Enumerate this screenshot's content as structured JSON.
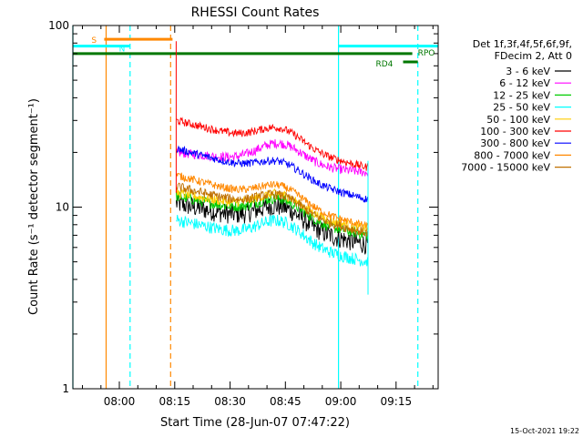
{
  "chart_data": {
    "type": "line",
    "title": "RHESSI Count Rates",
    "xlabel": "Start Time (28-Jun-07 07:47:22)",
    "ylabel": "Count Rate (s⁻¹ detector segment⁻¹)",
    "y_scale": "log",
    "ylim": [
      1,
      100
    ],
    "xlim_minutes_after_start": [
      0,
      99
    ],
    "x_ticks": [
      {
        "label": "08:00",
        "minutes": 12.6
      },
      {
        "label": "08:15",
        "minutes": 27.6
      },
      {
        "label": "08:30",
        "minutes": 42.6
      },
      {
        "label": "08:45",
        "minutes": 57.6
      },
      {
        "label": "09:00",
        "minutes": 72.6
      },
      {
        "label": "09:15",
        "minutes": 87.6
      }
    ],
    "y_ticks": [
      {
        "label": "1",
        "value": 1
      },
      {
        "label": "10",
        "value": 10
      },
      {
        "label": "100",
        "value": 100
      }
    ],
    "legend": {
      "header": [
        "Det 1f,3f,4f,5f,6f,9f,",
        "FDecim 2, Att 0"
      ],
      "placement": "right"
    },
    "series": [
      {
        "name": "3 - 6 keV",
        "color": "#000000",
        "start": 10.5,
        "end": 6.2,
        "bump": 2.2,
        "noise": 0.13
      },
      {
        "name": "6 - 12 keV",
        "color": "#ff00ff",
        "start": 20.0,
        "end": 15.5,
        "bump": 5.0,
        "noise": 0.06
      },
      {
        "name": "12 - 25 keV",
        "color": "#00cc00",
        "start": 11.5,
        "end": 7.0,
        "bump": 2.3,
        "noise": 0.07
      },
      {
        "name": "25 - 50 keV",
        "color": "#00ffff",
        "start": 8.5,
        "end": 5.0,
        "bump": 2.0,
        "noise": 0.08
      },
      {
        "name": "50 - 100 keV",
        "color": "#ffcc00",
        "start": 12.0,
        "end": 7.6,
        "bump": 2.4,
        "noise": 0.06
      },
      {
        "name": "100 - 300 keV",
        "color": "#ff0000",
        "start": 30.0,
        "end": 16.5,
        "bump": 5.5,
        "noise": 0.05
      },
      {
        "name": "300 - 800 keV",
        "color": "#0000ff",
        "start": 21.0,
        "end": 11.0,
        "bump": 3.0,
        "noise": 0.05
      },
      {
        "name": "800 - 7000 keV",
        "color": "#ff8800",
        "start": 15.0,
        "end": 7.8,
        "bump": 2.6,
        "noise": 0.05
      },
      {
        "name": "7000 - 15000 keV",
        "color": "#c07000",
        "start": 13.0,
        "end": 7.2,
        "bump": 2.2,
        "noise": 0.06
      }
    ],
    "data_window_minutes": [
      28.0,
      80.0
    ],
    "bump_peak_minutes": 56.0,
    "flag_bars": [
      {
        "label": "S",
        "color": "#ff8800",
        "x_start_minutes": 8.5,
        "x_end_minutes": 27.0,
        "level": 84
      },
      {
        "label": "N",
        "color": "#00ffff",
        "x_start_minutes": 0.0,
        "x_end_minutes": 15.5,
        "level": 77
      },
      {
        "label": "",
        "color": "#00ffff",
        "x_start_minutes": 72.0,
        "x_end_minutes": 99.0,
        "level": 77
      },
      {
        "label": "RPO",
        "color": "#007700",
        "x_start_minutes": 0.0,
        "x_end_minutes": 92.0,
        "level": 70
      },
      {
        "label": "RD4",
        "color": "#007700",
        "x_start_minutes": 89.5,
        "x_end_minutes": 93.5,
        "level": 63
      }
    ],
    "vertical_markers": [
      {
        "minutes": 0.0,
        "color": "#00ffff",
        "style": "solid"
      },
      {
        "minutes": 9.0,
        "color": "#ff8800",
        "style": "solid"
      },
      {
        "minutes": 15.5,
        "color": "#00ffff",
        "style": "dashed"
      },
      {
        "minutes": 26.5,
        "color": "#ff8800",
        "style": "dashed"
      },
      {
        "minutes": 72.0,
        "color": "#00ffff",
        "style": "solid"
      },
      {
        "minutes": 93.5,
        "color": "#00ffff",
        "style": "dashed"
      }
    ]
  },
  "footer": {
    "timestamp": "15-Oct-2021 19:22"
  }
}
